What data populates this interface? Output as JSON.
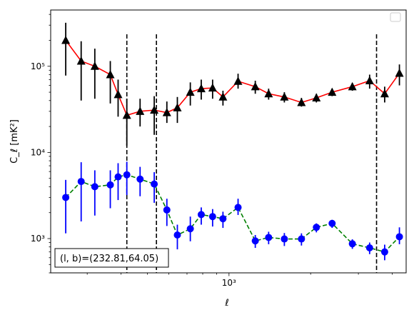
{
  "chart_data": {
    "type": "scatter",
    "title": "",
    "xlabel": "ℓ",
    "ylabel": "C_ℓ [mK²]",
    "xscale": "log",
    "yscale": "log",
    "xlim": [
      220,
      4500
    ],
    "ylim": [
      400,
      450000
    ],
    "grid": false,
    "legend": "top-right, empty",
    "x_tick_labels": [
      {
        "value": 1000,
        "label": "10³"
      }
    ],
    "y_tick_labels": [
      {
        "value": 1000,
        "label": "10³"
      },
      {
        "value": 10000,
        "label": "10⁴"
      },
      {
        "value": 100000,
        "label": "10⁵"
      }
    ],
    "vlines": [
      420,
      540,
      3500
    ],
    "annotation": "(l, b)=(232.81,64.05)",
    "series": [
      {
        "color": "#ff0000",
        "marker_color": "#000000",
        "marker": "triangle",
        "linestyle": "solid",
        "points": [
          {
            "x": 250,
            "y": 200000,
            "lo": 78000,
            "hi": 320000
          },
          {
            "x": 285,
            "y": 115000,
            "lo": 40000,
            "hi": 195000
          },
          {
            "x": 320,
            "y": 100000,
            "lo": 42000,
            "hi": 160000
          },
          {
            "x": 365,
            "y": 80000,
            "lo": 37000,
            "hi": 115000
          },
          {
            "x": 390,
            "y": 47000,
            "lo": 26000,
            "hi": 70000
          },
          {
            "x": 420,
            "y": 27000,
            "lo": 12000,
            "hi": 42000
          },
          {
            "x": 470,
            "y": 30000,
            "lo": 20000,
            "hi": 42000
          },
          {
            "x": 530,
            "y": 31000,
            "lo": 16000,
            "hi": 45000
          },
          {
            "x": 590,
            "y": 29000,
            "lo": 22000,
            "hi": 39000
          },
          {
            "x": 645,
            "y": 33000,
            "lo": 22000,
            "hi": 44000
          },
          {
            "x": 720,
            "y": 50000,
            "lo": 35000,
            "hi": 65000
          },
          {
            "x": 790,
            "y": 55000,
            "lo": 41000,
            "hi": 70000
          },
          {
            "x": 870,
            "y": 56000,
            "lo": 42000,
            "hi": 70000
          },
          {
            "x": 950,
            "y": 44000,
            "lo": 35000,
            "hi": 52000
          },
          {
            "x": 1080,
            "y": 67000,
            "lo": 55000,
            "hi": 82000
          },
          {
            "x": 1250,
            "y": 58000,
            "lo": 48000,
            "hi": 68000
          },
          {
            "x": 1400,
            "y": 48000,
            "lo": 41000,
            "hi": 55000
          },
          {
            "x": 1600,
            "y": 44000,
            "lo": 38000,
            "hi": 50000
          },
          {
            "x": 1850,
            "y": 38000,
            "lo": 34000,
            "hi": 43000
          },
          {
            "x": 2100,
            "y": 43000,
            "lo": 38000,
            "hi": 48000
          },
          {
            "x": 2400,
            "y": 50000,
            "lo": 45000,
            "hi": 55000
          },
          {
            "x": 2850,
            "y": 58000,
            "lo": 52000,
            "hi": 64000
          },
          {
            "x": 3300,
            "y": 68000,
            "lo": 55000,
            "hi": 80000
          },
          {
            "x": 3750,
            "y": 48000,
            "lo": 38000,
            "hi": 58000
          },
          {
            "x": 4250,
            "y": 83000,
            "lo": 60000,
            "hi": 105000
          }
        ]
      },
      {
        "color": "#008000",
        "marker_color": "#0000ff",
        "marker": "circle",
        "linestyle": "dashed",
        "points": [
          {
            "x": 250,
            "y": 3000,
            "lo": 1150,
            "hi": 4800
          },
          {
            "x": 285,
            "y": 4600,
            "lo": 1580,
            "hi": 7700
          },
          {
            "x": 320,
            "y": 4000,
            "lo": 1850,
            "hi": 6200
          },
          {
            "x": 365,
            "y": 4200,
            "lo": 2250,
            "hi": 6200
          },
          {
            "x": 390,
            "y": 5200,
            "lo": 2800,
            "hi": 7500
          },
          {
            "x": 420,
            "y": 5500,
            "lo": 3200,
            "hi": 7800
          },
          {
            "x": 470,
            "y": 4900,
            "lo": 3100,
            "hi": 6800
          },
          {
            "x": 530,
            "y": 4300,
            "lo": 2600,
            "hi": 5900
          },
          {
            "x": 590,
            "y": 2150,
            "lo": 1400,
            "hi": 2900
          },
          {
            "x": 645,
            "y": 1100,
            "lo": 750,
            "hi": 1450
          },
          {
            "x": 720,
            "y": 1300,
            "lo": 930,
            "hi": 1800
          },
          {
            "x": 790,
            "y": 1900,
            "lo": 1450,
            "hi": 2300
          },
          {
            "x": 870,
            "y": 1800,
            "lo": 1380,
            "hi": 2200
          },
          {
            "x": 950,
            "y": 1700,
            "lo": 1330,
            "hi": 2050
          },
          {
            "x": 1080,
            "y": 2300,
            "lo": 1880,
            "hi": 2900
          },
          {
            "x": 1250,
            "y": 940,
            "lo": 780,
            "hi": 1100
          },
          {
            "x": 1400,
            "y": 1030,
            "lo": 860,
            "hi": 1200
          },
          {
            "x": 1600,
            "y": 990,
            "lo": 820,
            "hi": 1160
          },
          {
            "x": 1850,
            "y": 990,
            "lo": 830,
            "hi": 1150
          },
          {
            "x": 2100,
            "y": 1350,
            "lo": 1180,
            "hi": 1500
          },
          {
            "x": 2400,
            "y": 1500,
            "lo": 1330,
            "hi": 1650
          },
          {
            "x": 2850,
            "y": 870,
            "lo": 760,
            "hi": 980
          },
          {
            "x": 3300,
            "y": 780,
            "lo": 660,
            "hi": 900
          },
          {
            "x": 3750,
            "y": 700,
            "lo": 560,
            "hi": 850
          },
          {
            "x": 4250,
            "y": 1050,
            "lo": 860,
            "hi": 1350
          }
        ]
      }
    ]
  }
}
